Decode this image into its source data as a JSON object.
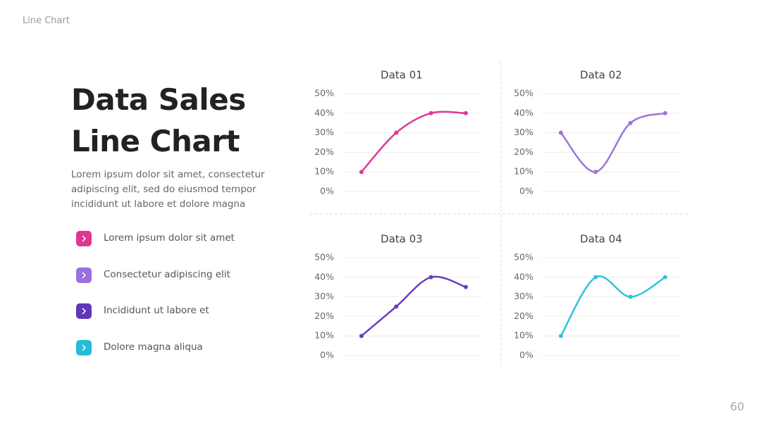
{
  "header": "Line Chart",
  "title": "Data Sales Line Chart",
  "body": "Lorem ipsum dolor sit amet, consectetur adipiscing elit, sed do eiusmod tempor incididunt ut labore et dolore magna",
  "list": [
    {
      "text": "Lorem ipsum dolor sit amet",
      "color": "#e0368f"
    },
    {
      "text": "Consectetur adipiscing elit",
      "color": "#9a6fe0"
    },
    {
      "text": "Incididunt ut labore et",
      "color": "#6236b8"
    },
    {
      "text": "Dolore magna aliqua",
      "color": "#25bcd6"
    }
  ],
  "page_number": "60",
  "chart_data": [
    {
      "type": "line",
      "title": "Data 01",
      "values": [
        10,
        30,
        40,
        40
      ],
      "color": "#e0389a",
      "ylim": [
        0,
        50
      ],
      "yticks": [
        {
          "value": 0,
          "label": "0%"
        },
        {
          "value": 10,
          "label": "10%"
        },
        {
          "value": 20,
          "label": "20%"
        },
        {
          "value": 30,
          "label": "30%"
        },
        {
          "value": 40,
          "label": "40%"
        },
        {
          "value": 50,
          "label": "50%"
        }
      ],
      "grid": true
    },
    {
      "type": "line",
      "title": "Data 02",
      "values": [
        30,
        10,
        35,
        40
      ],
      "color": "#9b74d9",
      "ylim": [
        0,
        50
      ],
      "yticks": [
        {
          "value": 0,
          "label": "0%"
        },
        {
          "value": 10,
          "label": "10%"
        },
        {
          "value": 20,
          "label": "20%"
        },
        {
          "value": 30,
          "label": "30%"
        },
        {
          "value": 40,
          "label": "40%"
        },
        {
          "value": 50,
          "label": "50%"
        }
      ],
      "grid": true
    },
    {
      "type": "line",
      "title": "Data 03",
      "values": [
        10,
        25,
        40,
        35
      ],
      "color": "#6a3dbf",
      "ylim": [
        0,
        50
      ],
      "yticks": [
        {
          "value": 0,
          "label": "0%"
        },
        {
          "value": 10,
          "label": "10%"
        },
        {
          "value": 20,
          "label": "20%"
        },
        {
          "value": 30,
          "label": "30%"
        },
        {
          "value": 40,
          "label": "40%"
        },
        {
          "value": 50,
          "label": "50%"
        }
      ],
      "grid": true
    },
    {
      "type": "line",
      "title": "Data 04",
      "values": [
        10,
        40,
        30,
        40
      ],
      "color": "#2ec4dc",
      "ylim": [
        0,
        50
      ],
      "yticks": [
        {
          "value": 0,
          "label": "0%"
        },
        {
          "value": 10,
          "label": "10%"
        },
        {
          "value": 20,
          "label": "20%"
        },
        {
          "value": 30,
          "label": "30%"
        },
        {
          "value": 40,
          "label": "40%"
        },
        {
          "value": 50,
          "label": "50%"
        }
      ],
      "grid": true
    }
  ]
}
